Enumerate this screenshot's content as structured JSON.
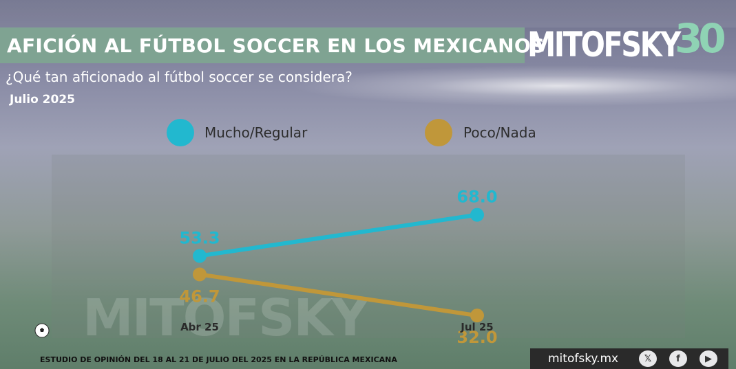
{
  "header": {
    "title": "AFICIÓN AL FÚTBOL SOCCER EN LOS MEXICANOS",
    "logo_text": "MITOFSKY",
    "logo_number": "30",
    "subtitle": "¿Qué tan aficionado al fútbol soccer se considera?",
    "date_label": "Julio 2025"
  },
  "legend": [
    {
      "label": "Mucho/Regular",
      "color": "#22b8cf"
    },
    {
      "label": "Poco/Nada",
      "color": "#c0973a"
    }
  ],
  "chart_data": {
    "type": "line",
    "categories": [
      "Abr 25",
      "Jul 25"
    ],
    "series": [
      {
        "name": "Mucho/Regular",
        "values": [
          53.3,
          68.0
        ],
        "labels": [
          "53.3",
          "68.0"
        ],
        "color": "#22b8cf"
      },
      {
        "name": "Poco/Nada",
        "values": [
          46.7,
          32.0
        ],
        "labels": [
          "46.7",
          "32.0"
        ],
        "color": "#c0973a"
      }
    ],
    "title": "",
    "xlabel": "",
    "ylabel": "",
    "legend_position": "top"
  },
  "watermark": "MITOFSKY",
  "footer": {
    "note": "ESTUDIO DE OPINIÓN DEL 18 AL 21 DE JULIO DEL 2025 EN LA REPÚBLICA MEXICANA",
    "site": "mitofsky.mx",
    "icons": [
      "x-icon",
      "facebook-icon",
      "youtube-icon"
    ]
  }
}
